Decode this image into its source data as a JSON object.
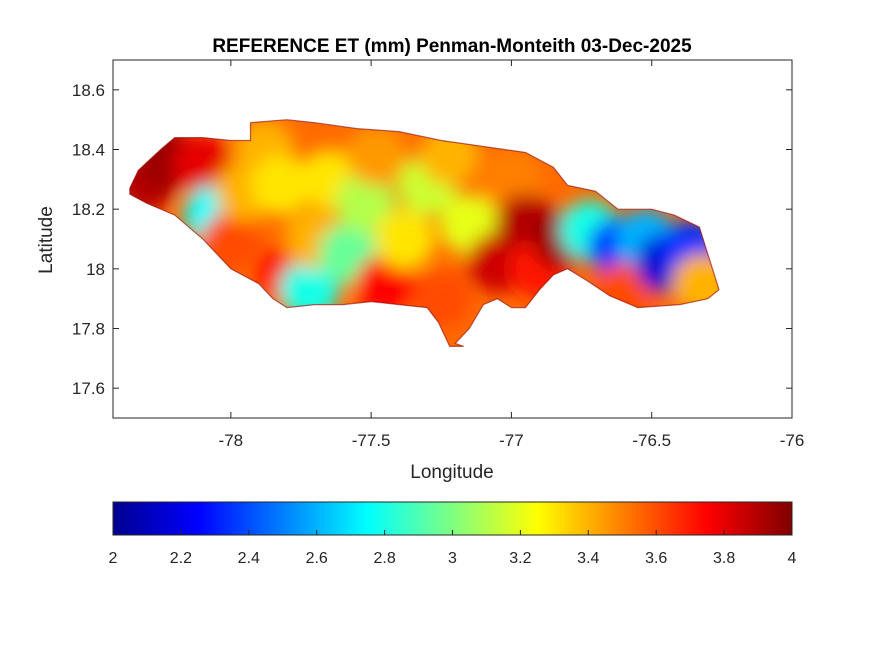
{
  "chart_data": {
    "type": "heatmap",
    "title": "REFERENCE ET (mm) Penman-Monteith 03-Dec-2025",
    "xlabel": "Longitude",
    "ylabel": "Latitude",
    "xlim": [
      -78.42,
      -76.0
    ],
    "ylim": [
      17.5,
      18.7
    ],
    "xticks": [
      -78,
      -77.5,
      -77,
      -76.5,
      -76
    ],
    "xtick_labels": [
      "-78",
      "-77.5",
      "-77",
      "-76.5",
      "-76"
    ],
    "yticks": [
      17.6,
      17.8,
      18,
      18.2,
      18.4,
      18.6
    ],
    "ytick_labels": [
      "17.6",
      "17.8",
      "18",
      "18.2",
      "18.4",
      "18.6"
    ],
    "grid": false,
    "colormap": "jet",
    "colorbar": {
      "orientation": "horizontal",
      "location": "below",
      "range": [
        2,
        4
      ],
      "ticks": [
        2,
        2.2,
        2.4,
        2.6,
        2.8,
        3,
        3.2,
        3.4,
        3.6,
        3.8,
        4
      ],
      "tick_labels": [
        "2",
        "2.2",
        "2.4",
        "2.6",
        "2.8",
        "3",
        "3.2",
        "3.4",
        "3.6",
        "3.8",
        "4"
      ]
    },
    "outline_lonlat": [
      [
        -78.36,
        18.27
      ],
      [
        -78.33,
        18.33
      ],
      [
        -78.25,
        18.4
      ],
      [
        -78.2,
        18.44
      ],
      [
        -78.1,
        18.44
      ],
      [
        -78.0,
        18.43
      ],
      [
        -77.93,
        18.43
      ],
      [
        -77.93,
        18.49
      ],
      [
        -77.8,
        18.5
      ],
      [
        -77.7,
        18.49
      ],
      [
        -77.55,
        18.47
      ],
      [
        -77.4,
        18.46
      ],
      [
        -77.25,
        18.43
      ],
      [
        -77.1,
        18.41
      ],
      [
        -76.95,
        18.39
      ],
      [
        -76.85,
        18.34
      ],
      [
        -76.8,
        18.28
      ],
      [
        -76.7,
        18.26
      ],
      [
        -76.62,
        18.2
      ],
      [
        -76.5,
        18.2
      ],
      [
        -76.42,
        18.18
      ],
      [
        -76.33,
        18.14
      ],
      [
        -76.3,
        18.05
      ],
      [
        -76.26,
        17.93
      ],
      [
        -76.3,
        17.9
      ],
      [
        -76.4,
        17.88
      ],
      [
        -76.55,
        17.87
      ],
      [
        -76.65,
        17.91
      ],
      [
        -76.73,
        17.96
      ],
      [
        -76.8,
        18.0
      ],
      [
        -76.85,
        17.98
      ],
      [
        -76.9,
        17.93
      ],
      [
        -76.95,
        17.87
      ],
      [
        -77.0,
        17.87
      ],
      [
        -77.05,
        17.9
      ],
      [
        -77.1,
        17.88
      ],
      [
        -77.15,
        17.8
      ],
      [
        -77.2,
        17.75
      ],
      [
        -77.17,
        17.74
      ],
      [
        -77.22,
        17.74
      ],
      [
        -77.26,
        17.82
      ],
      [
        -77.3,
        17.87
      ],
      [
        -77.4,
        17.88
      ],
      [
        -77.5,
        17.89
      ],
      [
        -77.6,
        17.88
      ],
      [
        -77.7,
        17.88
      ],
      [
        -77.8,
        17.87
      ],
      [
        -77.85,
        17.9
      ],
      [
        -77.9,
        17.95
      ],
      [
        -78.0,
        18.0
      ],
      [
        -78.1,
        18.1
      ],
      [
        -78.2,
        18.18
      ],
      [
        -78.3,
        18.22
      ],
      [
        -78.36,
        18.25
      ]
    ],
    "regions": [
      {
        "lon": -78.3,
        "lat": 18.29,
        "et": 3.9
      },
      {
        "lon": -78.22,
        "lat": 18.37,
        "et": 3.95
      },
      {
        "lon": -78.1,
        "lat": 18.35,
        "et": 3.8
      },
      {
        "lon": -78.06,
        "lat": 18.18,
        "et": 2.75
      },
      {
        "lon": -78.0,
        "lat": 18.09,
        "et": 3.6
      },
      {
        "lon": -77.95,
        "lat": 18.26,
        "et": 3.4
      },
      {
        "lon": -77.88,
        "lat": 18.4,
        "et": 3.4
      },
      {
        "lon": -77.82,
        "lat": 18.28,
        "et": 3.3
      },
      {
        "lon": -77.8,
        "lat": 17.98,
        "et": 3.75
      },
      {
        "lon": -77.72,
        "lat": 17.93,
        "et": 2.8
      },
      {
        "lon": -77.7,
        "lat": 18.1,
        "et": 3.4
      },
      {
        "lon": -77.65,
        "lat": 18.3,
        "et": 3.3
      },
      {
        "lon": -77.58,
        "lat": 18.05,
        "et": 2.95
      },
      {
        "lon": -77.52,
        "lat": 18.22,
        "et": 3.1
      },
      {
        "lon": -77.48,
        "lat": 18.38,
        "et": 3.45
      },
      {
        "lon": -77.45,
        "lat": 17.95,
        "et": 3.75
      },
      {
        "lon": -77.38,
        "lat": 18.1,
        "et": 3.3
      },
      {
        "lon": -77.3,
        "lat": 18.28,
        "et": 3.15
      },
      {
        "lon": -77.22,
        "lat": 18.38,
        "et": 3.4
      },
      {
        "lon": -77.25,
        "lat": 17.9,
        "et": 3.6
      },
      {
        "lon": -77.15,
        "lat": 18.15,
        "et": 3.2
      },
      {
        "lon": -77.05,
        "lat": 18.02,
        "et": 3.85
      },
      {
        "lon": -77.0,
        "lat": 18.3,
        "et": 3.5
      },
      {
        "lon": -76.95,
        "lat": 18.15,
        "et": 3.9
      },
      {
        "lon": -76.9,
        "lat": 18.0,
        "et": 3.7
      },
      {
        "lon": -76.82,
        "lat": 18.1,
        "et": 3.95
      },
      {
        "lon": -76.72,
        "lat": 18.13,
        "et": 2.8
      },
      {
        "lon": -76.62,
        "lat": 18.07,
        "et": 2.35
      },
      {
        "lon": -76.6,
        "lat": 17.92,
        "et": 3.6
      },
      {
        "lon": -76.52,
        "lat": 18.1,
        "et": 2.6
      },
      {
        "lon": -76.45,
        "lat": 18.02,
        "et": 2.15
      },
      {
        "lon": -76.36,
        "lat": 18.06,
        "et": 2.35
      },
      {
        "lon": -76.32,
        "lat": 17.95,
        "et": 3.4
      }
    ]
  }
}
